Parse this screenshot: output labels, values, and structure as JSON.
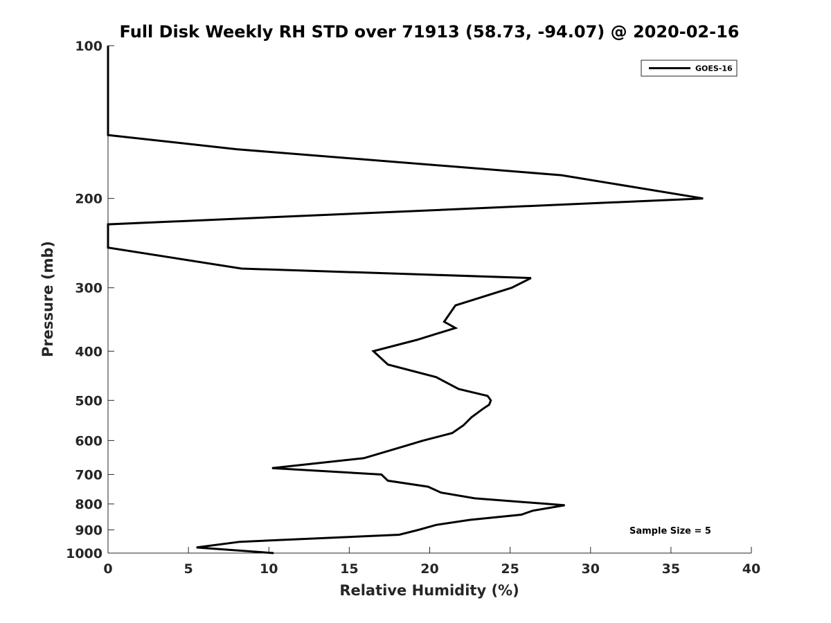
{
  "chart_data": {
    "type": "line",
    "title": "Full Disk Weekly RH STD over 71913 (58.73, -94.07) @ 2020-02-16",
    "xlabel": "Relative Humidity (%)",
    "ylabel": "Pressure (mb)",
    "xlim": [
      0,
      40
    ],
    "ylim": [
      1000,
      100
    ],
    "yscale": "log",
    "y_reversed": true,
    "grid": false,
    "legend_position": "top-right",
    "x_ticks": [
      "0",
      "5",
      "10",
      "15",
      "20",
      "25",
      "30",
      "35",
      "40"
    ],
    "y_ticks": [
      "100",
      "200",
      "300",
      "400",
      "500",
      "600",
      "700",
      "800",
      "900",
      "1000"
    ],
    "annotation": "Sample Size = 5",
    "series": [
      {
        "name": "GOES-16",
        "color": "#000000",
        "points": [
          [
            0,
            100
          ],
          [
            0,
            150
          ],
          [
            8,
            160
          ],
          [
            28.2,
            180
          ],
          [
            37,
            200
          ],
          [
            0,
            225
          ],
          [
            0,
            250
          ],
          [
            8.3,
            275
          ],
          [
            26.3,
            287
          ],
          [
            25.1,
            300
          ],
          [
            21.6,
            325
          ],
          [
            20.9,
            350
          ],
          [
            21.6,
            360
          ],
          [
            19.2,
            380
          ],
          [
            16.5,
            400
          ],
          [
            17.4,
            425
          ],
          [
            20.4,
            450
          ],
          [
            21.8,
            475
          ],
          [
            23.6,
            490
          ],
          [
            23.8,
            500
          ],
          [
            23.7,
            510
          ],
          [
            23.3,
            520
          ],
          [
            22.6,
            540
          ],
          [
            22.1,
            560
          ],
          [
            21.4,
            580
          ],
          [
            19.6,
            600
          ],
          [
            18.1,
            620
          ],
          [
            15.9,
            650
          ],
          [
            10.2,
            680
          ],
          [
            17.0,
            700
          ],
          [
            17.4,
            720
          ],
          [
            19.9,
            740
          ],
          [
            20.7,
            760
          ],
          [
            22.8,
            780
          ],
          [
            28.4,
            805
          ],
          [
            26.4,
            825
          ],
          [
            25.7,
            840
          ],
          [
            22.5,
            860
          ],
          [
            20.4,
            880
          ],
          [
            19.3,
            900
          ],
          [
            18.1,
            920
          ],
          [
            8.2,
            950
          ],
          [
            5.5,
            975
          ],
          [
            10.3,
            1000
          ]
        ]
      }
    ]
  }
}
